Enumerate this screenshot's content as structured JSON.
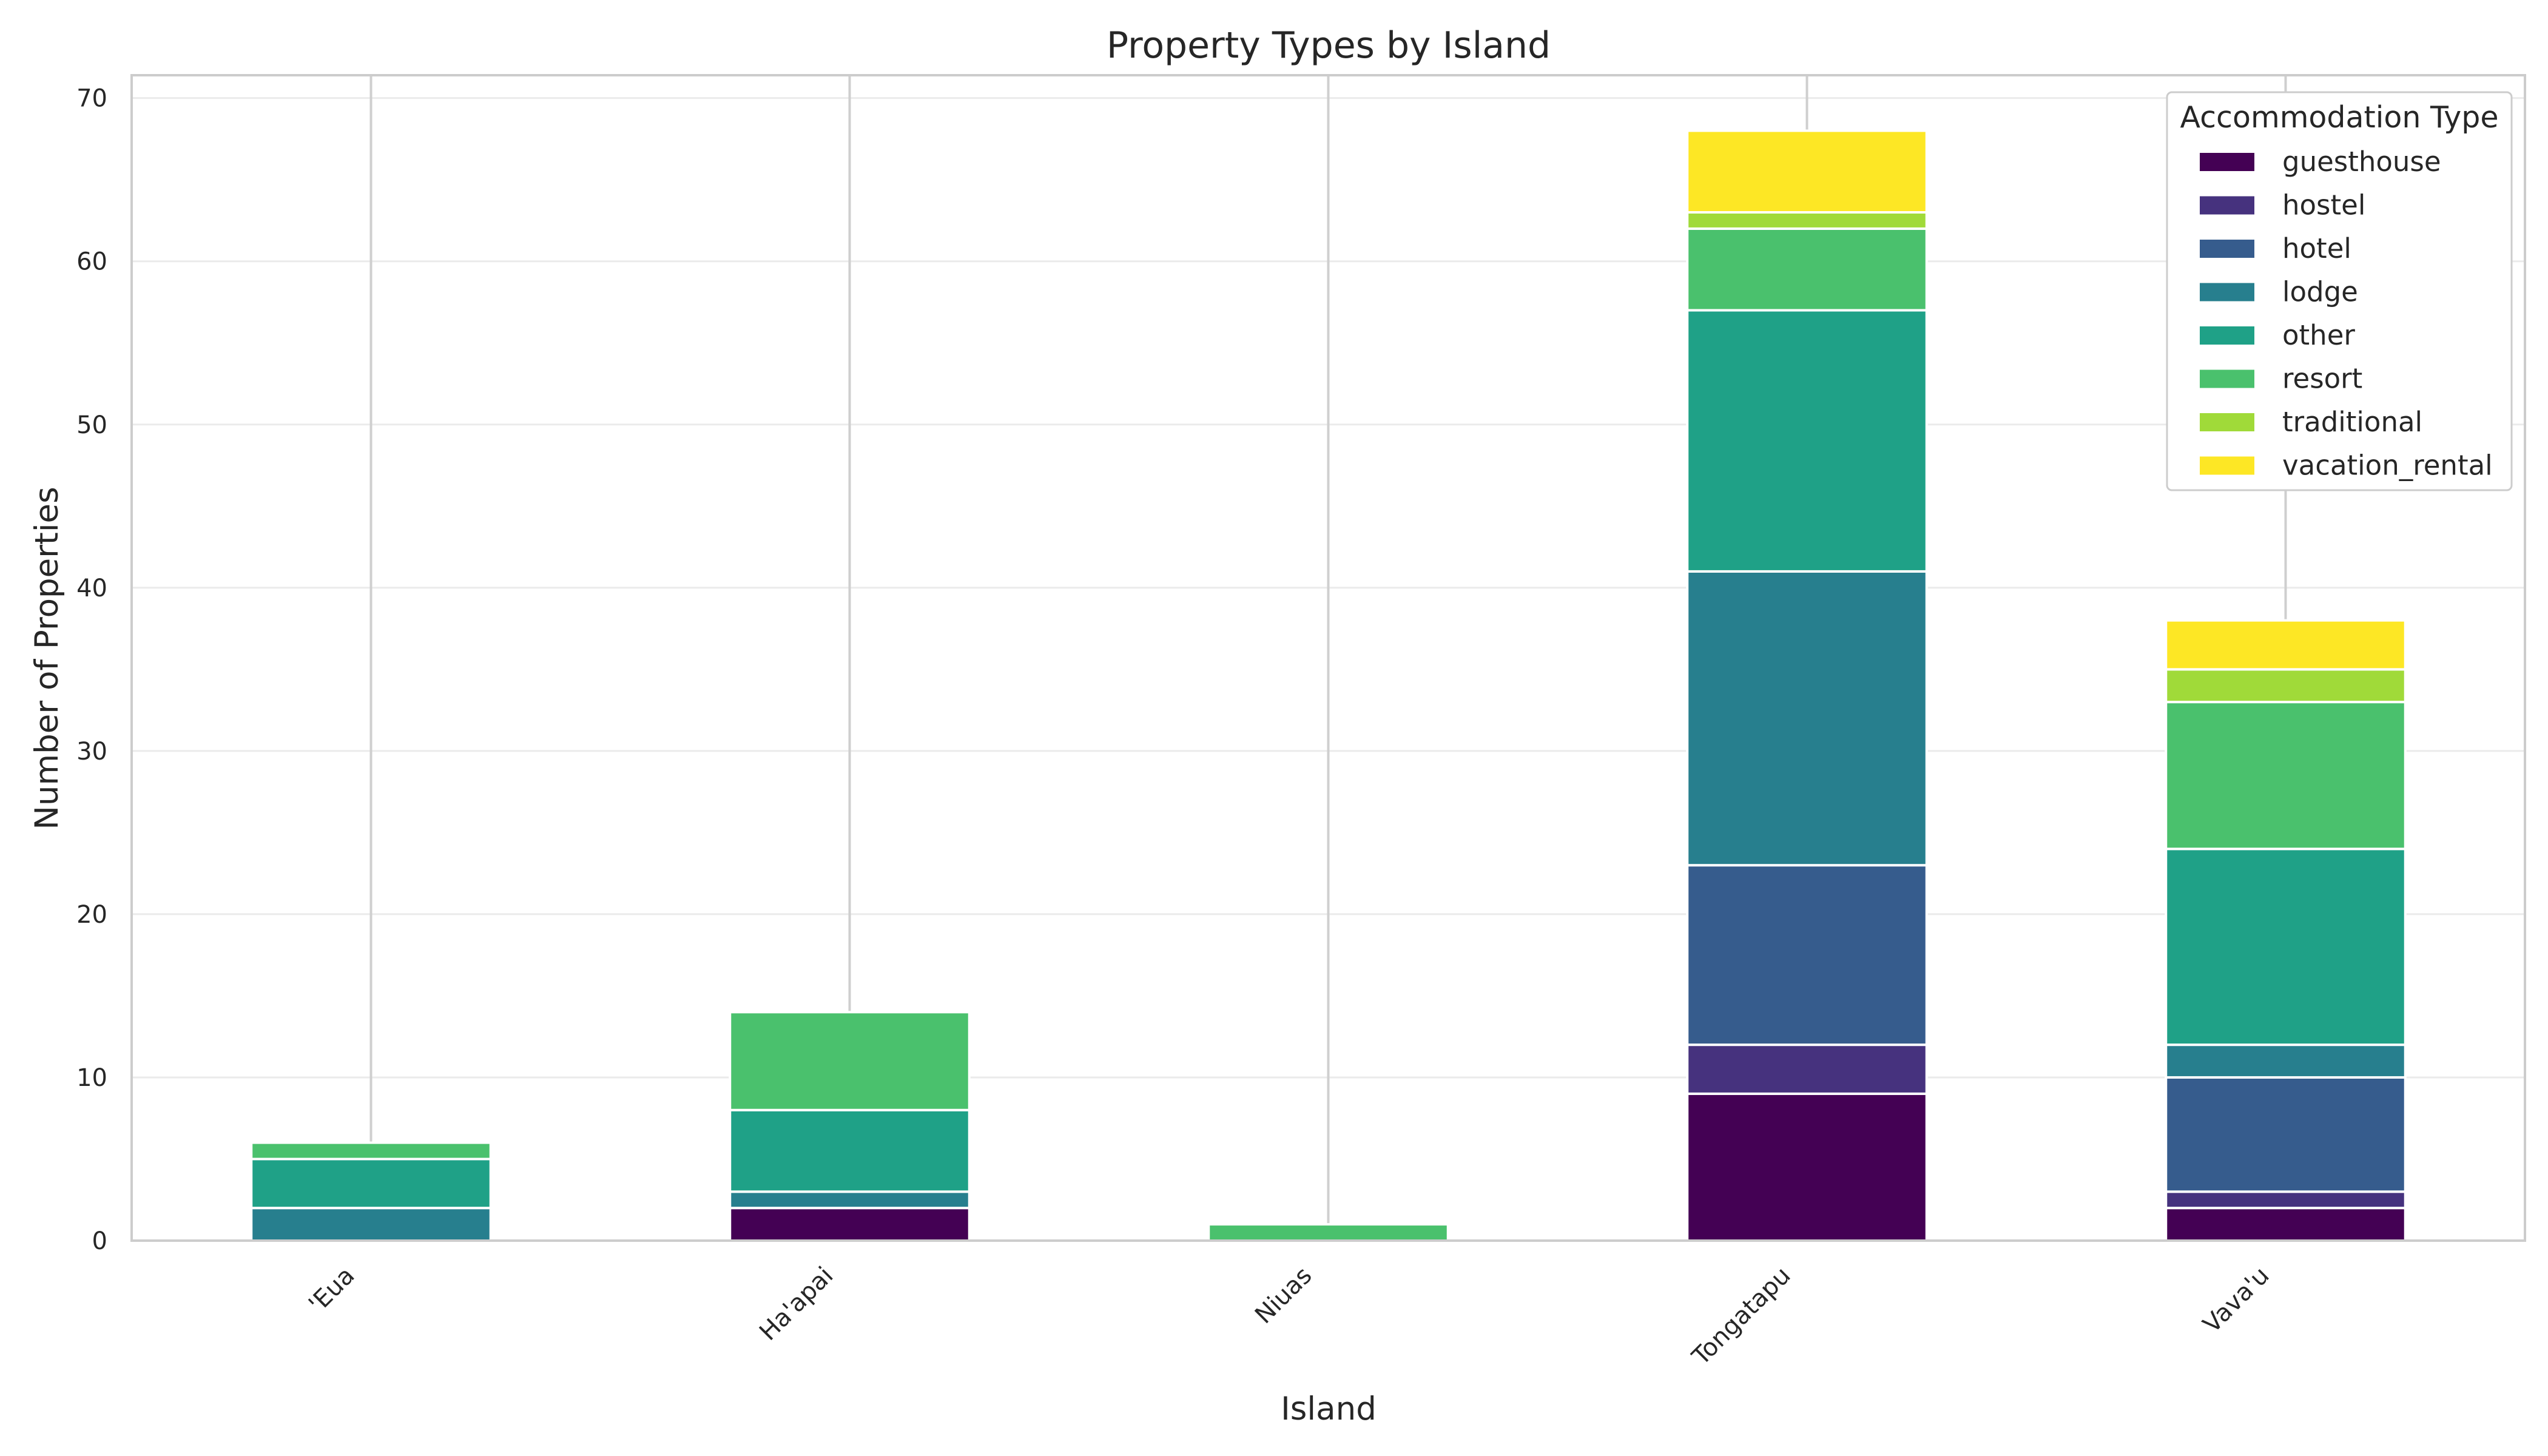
{
  "chart_data": {
    "type": "bar",
    "stacked": true,
    "title": "Property Types by Island",
    "xlabel": "Island",
    "ylabel": "Number of Properties",
    "ylim": [
      0,
      71.4
    ],
    "yticks": [
      0,
      10,
      20,
      30,
      40,
      50,
      60,
      70
    ],
    "grid": true,
    "legend_title": "Accommodation Type",
    "legend_position": "top-right",
    "categories": [
      "'Eua",
      "Ha'apai",
      "Niuas",
      "Tongatapu",
      "Vava'u"
    ],
    "series": [
      {
        "name": "guesthouse",
        "color": "#440154",
        "values": [
          0,
          2,
          0,
          9,
          2
        ]
      },
      {
        "name": "hostel",
        "color": "#46327e",
        "values": [
          0,
          0,
          0,
          3,
          1
        ]
      },
      {
        "name": "hotel",
        "color": "#365c8d",
        "values": [
          0,
          0,
          0,
          11,
          7
        ]
      },
      {
        "name": "lodge",
        "color": "#277f8e",
        "values": [
          2,
          1,
          0,
          18,
          2
        ]
      },
      {
        "name": "other",
        "color": "#1fa187",
        "values": [
          3,
          5,
          0,
          16,
          12
        ]
      },
      {
        "name": "resort",
        "color": "#4ac16d",
        "values": [
          1,
          6,
          1,
          5,
          9
        ]
      },
      {
        "name": "traditional",
        "color": "#a0da39",
        "values": [
          0,
          0,
          0,
          1,
          2
        ]
      },
      {
        "name": "vacation_rental",
        "color": "#fde725",
        "values": [
          0,
          0,
          0,
          5,
          3
        ]
      }
    ]
  }
}
